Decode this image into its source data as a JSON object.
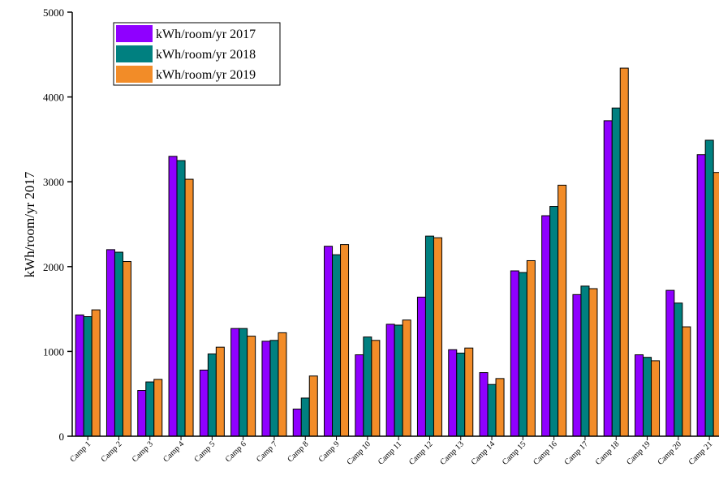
{
  "chart_data": {
    "type": "bar",
    "y_label": "kWh/room/yr 2017",
    "categories": [
      "Camp 1",
      "Camp 2",
      "Camp 3",
      "Camp 4",
      "Camp 5",
      "Camp 6",
      "Camp 7",
      "Camp 8",
      "Camp 9",
      "Camp 10",
      "Camp 11",
      "Camp 12",
      "Camp 13",
      "Camp 14",
      "Camp 15",
      "Camp 16",
      "Camp 17",
      "Camp 18",
      "Camp 19",
      "Camp 20",
      "Camp 21"
    ],
    "series": [
      {
        "name": "kWh/room/yr 2017",
        "color": "#8f00ff",
        "values": [
          1430,
          2200,
          540,
          3300,
          780,
          1270,
          1120,
          320,
          2240,
          960,
          1320,
          1640,
          1020,
          750,
          1950,
          2600,
          1670,
          3720,
          960,
          1720,
          3320
        ]
      },
      {
        "name": "kWh/room/yr 2018",
        "color": "#008080",
        "values": [
          1410,
          2170,
          640,
          3250,
          970,
          1270,
          1130,
          450,
          2140,
          1170,
          1310,
          2360,
          980,
          610,
          1930,
          2710,
          1770,
          3870,
          930,
          1570,
          3490
        ]
      },
      {
        "name": "kWh/room/yr 2019",
        "color": "#f28c28",
        "values": [
          1490,
          2060,
          670,
          3030,
          1050,
          1180,
          1220,
          710,
          2260,
          1130,
          1370,
          2340,
          1040,
          680,
          2070,
          2960,
          1740,
          4340,
          890,
          1290,
          3110
        ]
      }
    ],
    "ylim": [
      0,
      5000
    ],
    "yticks": [
      0,
      1000,
      2000,
      3000,
      4000,
      5000
    ],
    "legend": "top-left"
  }
}
